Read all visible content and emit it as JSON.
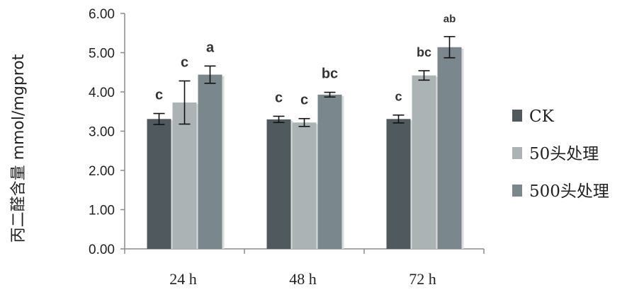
{
  "chart_data": {
    "type": "bar",
    "ylabel": "丙二醛含量 mmol/mgprot",
    "xlabel": "",
    "ylim": [
      0,
      6
    ],
    "yticks": [
      "0.00",
      "1.00",
      "2.00",
      "3.00",
      "4.00",
      "5.00",
      "6.00"
    ],
    "grid": false,
    "legend_position": "right",
    "categories": [
      "24 h",
      "48 h",
      "72 h"
    ],
    "series": [
      {
        "name": "CK",
        "color": "#505a5e",
        "values": [
          3.31,
          3.3,
          3.31
        ],
        "errors": [
          0.14,
          0.08,
          0.1
        ],
        "labels": [
          "c",
          "c",
          "c"
        ]
      },
      {
        "name": "50头处理",
        "color": "#abb3b5",
        "values": [
          3.73,
          3.22,
          4.42
        ],
        "errors": [
          0.55,
          0.1,
          0.12
        ],
        "labels": [
          "c",
          "c",
          "bc"
        ]
      },
      {
        "name": "500头处理",
        "color": "#7a878c",
        "values": [
          4.44,
          3.93,
          5.14
        ],
        "errors": [
          0.22,
          0.06,
          0.27
        ],
        "labels": [
          "a",
          "bc",
          "ab"
        ]
      }
    ]
  }
}
